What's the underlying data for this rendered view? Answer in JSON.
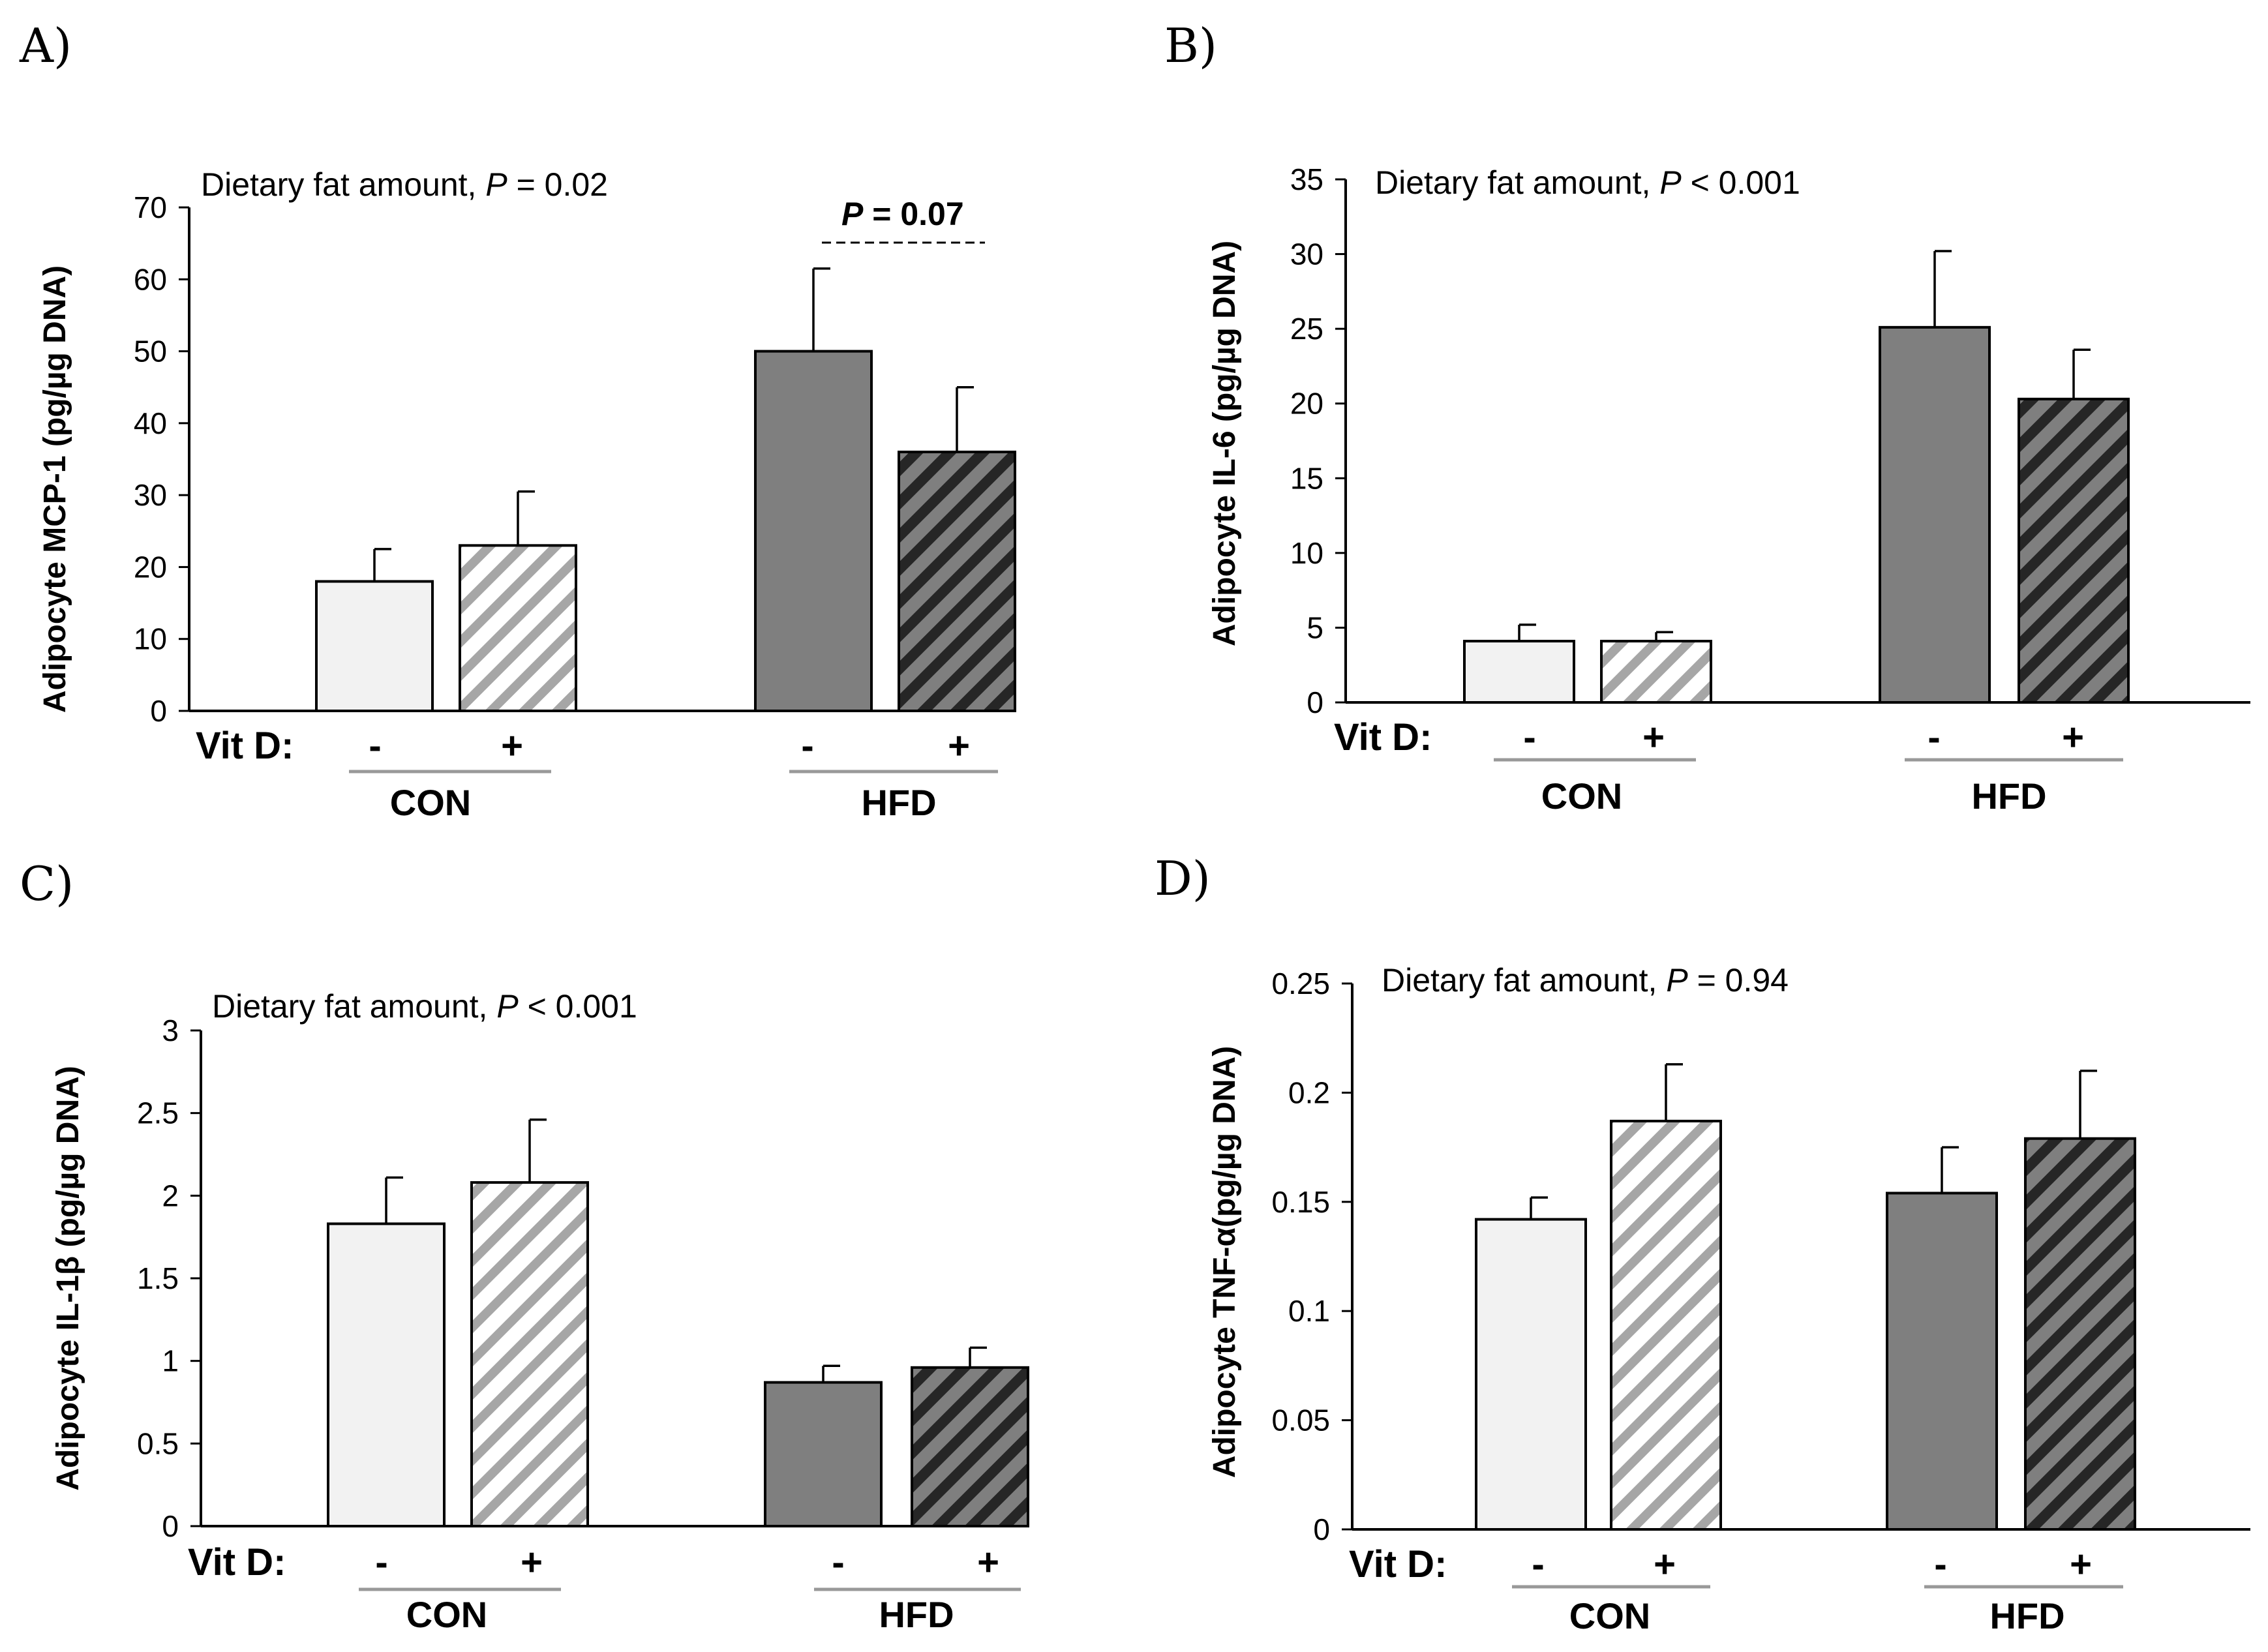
{
  "chart_data": [
    {
      "type": "bar",
      "panel": "A)",
      "annotation_prefix": "Dietary fat amount, ",
      "annotation_p": "P",
      "annotation_suffix": " = 0.02",
      "ylabel": "Adipocyte MCP-1 (pg/µg DNA)",
      "ylim": [
        0,
        70
      ],
      "yticks": [
        "0",
        "10",
        "20",
        "30",
        "40",
        "50",
        "60",
        "70"
      ],
      "ytick_values": [
        0,
        10,
        20,
        30,
        40,
        50,
        60,
        70
      ],
      "vitd_label": "Vit D:",
      "groups": [
        "CON",
        "HFD"
      ],
      "vitd_signs": [
        "-",
        "+",
        "-",
        "+"
      ],
      "bars": [
        {
          "group": "CON",
          "vitd": "-",
          "value": 18,
          "error": 4.5
        },
        {
          "group": "CON",
          "vitd": "+",
          "value": 23,
          "error": 7.5
        },
        {
          "group": "HFD",
          "vitd": "-",
          "value": 50,
          "error": 11.5
        },
        {
          "group": "HFD",
          "vitd": "+",
          "value": 36,
          "error": 9
        }
      ],
      "bracket_label_p": "P",
      "bracket_label_value": " = 0.07"
    },
    {
      "type": "bar",
      "panel": "B)",
      "annotation_prefix": "Dietary fat amount, ",
      "annotation_p": "P",
      "annotation_suffix": " < 0.001",
      "ylabel": "Adipocyte IL-6 (pg/µg DNA)",
      "ylim": [
        0,
        35
      ],
      "yticks": [
        "0",
        "5",
        "10",
        "15",
        "20",
        "25",
        "30",
        "35"
      ],
      "ytick_values": [
        0,
        5,
        10,
        15,
        20,
        25,
        30,
        35
      ],
      "vitd_label": "Vit D:",
      "groups": [
        "CON",
        "HFD"
      ],
      "vitd_signs": [
        "-",
        "+",
        "-",
        "+"
      ],
      "bars": [
        {
          "group": "CON",
          "vitd": "-",
          "value": 4.1,
          "error": 1.1
        },
        {
          "group": "CON",
          "vitd": "+",
          "value": 4.1,
          "error": 0.6
        },
        {
          "group": "HFD",
          "vitd": "-",
          "value": 25.1,
          "error": 5.1
        },
        {
          "group": "HFD",
          "vitd": "+",
          "value": 20.3,
          "error": 3.3
        }
      ]
    },
    {
      "type": "bar",
      "panel": "C)",
      "annotation_prefix": "Dietary fat amount, ",
      "annotation_p": "P",
      "annotation_suffix": " < 0.001",
      "ylabel": "Adipocyte IL-1β (pg/µg DNA)",
      "ylim": [
        0,
        3
      ],
      "yticks": [
        "0",
        "0.5",
        "1",
        "1.5",
        "2",
        "2.5",
        "3"
      ],
      "ytick_values": [
        0,
        0.5,
        1,
        1.5,
        2,
        2.5,
        3
      ],
      "vitd_label": "Vit D:",
      "groups": [
        "CON",
        "HFD"
      ],
      "vitd_signs": [
        "-",
        "+",
        "-",
        "+"
      ],
      "bars": [
        {
          "group": "CON",
          "vitd": "-",
          "value": 1.83,
          "error": 0.28
        },
        {
          "group": "CON",
          "vitd": "+",
          "value": 2.08,
          "error": 0.38
        },
        {
          "group": "HFD",
          "vitd": "-",
          "value": 0.87,
          "error": 0.1
        },
        {
          "group": "HFD",
          "vitd": "+",
          "value": 0.96,
          "error": 0.12
        }
      ]
    },
    {
      "type": "bar",
      "panel": "D)",
      "annotation_prefix": "Dietary fat amount, ",
      "annotation_p": "P",
      "annotation_suffix": " = 0.94",
      "ylabel": "Adipocyte TNF-α(pg/µg DNA)",
      "ylim": [
        0,
        0.25
      ],
      "yticks": [
        "0",
        "0.05",
        "0.1",
        "0.15",
        "0.2",
        "0.25"
      ],
      "ytick_values": [
        0,
        0.05,
        0.1,
        0.15,
        0.2,
        0.25
      ],
      "vitd_label": "Vit D:",
      "groups": [
        "CON",
        "HFD"
      ],
      "vitd_signs": [
        "-",
        "+",
        "-",
        "+"
      ],
      "bars": [
        {
          "group": "CON",
          "vitd": "-",
          "value": 0.142,
          "error": 0.01
        },
        {
          "group": "CON",
          "vitd": "+",
          "value": 0.187,
          "error": 0.026
        },
        {
          "group": "HFD",
          "vitd": "-",
          "value": 0.154,
          "error": 0.021
        },
        {
          "group": "HFD",
          "vitd": "+",
          "value": 0.179,
          "error": 0.031
        }
      ]
    }
  ],
  "colors": {
    "con_fill": "#f2f2f2",
    "con_hatch": "#a6a6a6",
    "hfd_fill": "#7f7f7f",
    "hfd_hatch": "#262626",
    "group_underline": "#999999"
  }
}
